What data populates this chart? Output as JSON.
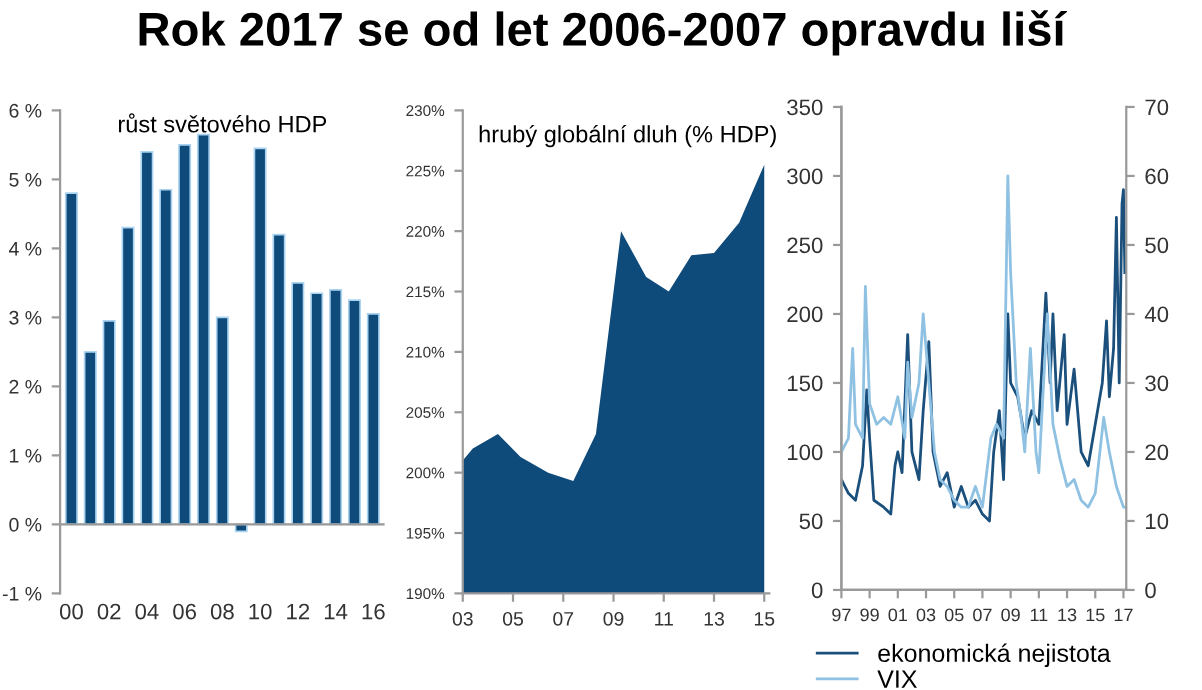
{
  "chart_data": [
    {
      "type": "bar",
      "title": "Rok 2017 se od let 2006-2007 opravdu liší",
      "subtitle": "růst světového HDP",
      "categories": [
        "00",
        null,
        "02",
        null,
        "04",
        null,
        "06",
        null,
        "08",
        null,
        "10",
        null,
        "12",
        null,
        "14",
        null,
        "16"
      ],
      "values": [
        4.8,
        2.5,
        2.95,
        4.3,
        5.4,
        4.85,
        5.5,
        5.65,
        3.0,
        -0.1,
        5.45,
        4.2,
        3.5,
        3.35,
        3.4,
        3.25,
        3.05
      ],
      "color": "#0e4a7a",
      "ylim": [
        -1,
        6
      ],
      "ref_lines": [
        {
          "axis": "y",
          "value": 0,
          "color": "#999999"
        }
      ],
      "yticks": [
        {
          "value": -1,
          "label": "-1 %"
        },
        {
          "value": 0,
          "label": "0 %"
        },
        {
          "value": 1,
          "label": "1 %"
        },
        {
          "value": 2,
          "label": "2 %"
        },
        {
          "value": 3,
          "label": "3 %"
        },
        {
          "value": 4,
          "label": "4 %"
        },
        {
          "value": 5,
          "label": "5 %"
        },
        {
          "value": 6,
          "label": "6 %"
        }
      ],
      "grid": false
    },
    {
      "type": "area",
      "title": "hrubý globální dluh (% HDP)",
      "x": [
        2003,
        2003.4,
        2004.4,
        2005.3,
        2006.4,
        2007.4,
        2008.3,
        2009.3,
        2010.3,
        2011.2,
        2012.1,
        2013,
        2014,
        2015
      ],
      "values": [
        201,
        202,
        203.2,
        201.3,
        200,
        199.3,
        203.2,
        220,
        216.2,
        215,
        218,
        218.2,
        220.7,
        225.5
      ],
      "color": "#0e4a7a",
      "xlim": [
        2003,
        2015.2
      ],
      "xticks": [
        {
          "value": 2003,
          "label": "03"
        },
        {
          "value": 2005,
          "label": "05"
        },
        {
          "value": 2007,
          "label": "07"
        },
        {
          "value": 2009,
          "label": "09"
        },
        {
          "value": 2011,
          "label": "11"
        },
        {
          "value": 2013,
          "label": "13"
        },
        {
          "value": 2015,
          "label": "15"
        }
      ],
      "ylim": [
        190,
        230
      ],
      "yticks": [
        {
          "value": 190,
          "label": "190%"
        },
        {
          "value": 195,
          "label": "195%"
        },
        {
          "value": 200,
          "label": "200%"
        },
        {
          "value": 205,
          "label": "205%"
        },
        {
          "value": 210,
          "label": "210%"
        },
        {
          "value": 215,
          "label": "215%"
        },
        {
          "value": 220,
          "label": "220%"
        },
        {
          "value": 225,
          "label": "225%"
        },
        {
          "value": 230,
          "label": "230%"
        }
      ],
      "grid": false
    },
    {
      "type": "line",
      "xlim": [
        1997,
        2017.2
      ],
      "xticks": [
        {
          "value": 1997,
          "label": "97"
        },
        {
          "value": 1999,
          "label": "99"
        },
        {
          "value": 2001,
          "label": "01"
        },
        {
          "value": 2003,
          "label": "03"
        },
        {
          "value": 2005,
          "label": "05"
        },
        {
          "value": 2007,
          "label": "07"
        },
        {
          "value": 2009,
          "label": "09"
        },
        {
          "value": 2011,
          "label": "11"
        },
        {
          "value": 2013,
          "label": "13"
        },
        {
          "value": 2015,
          "label": "15"
        },
        {
          "value": 2017,
          "label": "17"
        }
      ],
      "ylim": [
        0,
        350
      ],
      "yticks": [
        0,
        50,
        100,
        150,
        200,
        250,
        300,
        350
      ],
      "y2lim": [
        0,
        70
      ],
      "y2ticks": [
        0,
        10,
        20,
        30,
        40,
        50,
        60,
        70
      ],
      "grid": false,
      "legend": "bottom",
      "line_style": "solid",
      "marker": "none",
      "series": [
        {
          "name": "ekonomická nejistota",
          "color": "#1b4f7c",
          "x": [
            1997,
            1997.5,
            1998,
            1998.5,
            1998.8,
            1999,
            1999.3,
            2000,
            2000.5,
            2000.8,
            2001,
            2001.3,
            2001.7,
            2002,
            2002.5,
            2002.8,
            2003.2,
            2003.5,
            2004,
            2004.5,
            2005,
            2005.5,
            2006,
            2006.5,
            2007,
            2007.5,
            2007.8,
            2008.2,
            2008.5,
            2008.8,
            2009,
            2009.5,
            2010,
            2010.5,
            2011,
            2011.5,
            2011.8,
            2012,
            2012.3,
            2012.8,
            2013,
            2013.5,
            2014,
            2014.5,
            2015,
            2015.5,
            2015.8,
            2016,
            2016.3,
            2016.5,
            2016.7,
            2016.9,
            2017,
            2017.1
          ],
          "values": [
            80,
            70,
            65,
            90,
            145,
            110,
            65,
            60,
            55,
            90,
            100,
            85,
            185,
            100,
            80,
            130,
            180,
            100,
            75,
            85,
            60,
            75,
            60,
            65,
            55,
            50,
            100,
            130,
            80,
            200,
            150,
            140,
            110,
            130,
            120,
            215,
            150,
            200,
            130,
            185,
            120,
            160,
            100,
            90,
            120,
            150,
            195,
            140,
            175,
            270,
            150,
            280,
            290,
            230
          ]
        },
        {
          "name": "VIX",
          "color": "#8fc1e3",
          "axis": "y2",
          "x": [
            1997,
            1997.5,
            1997.8,
            1998,
            1998.5,
            1998.7,
            1999,
            1999.5,
            2000,
            2000.5,
            2001,
            2001.5,
            2001.7,
            2002,
            2002.5,
            2002.8,
            2003.2,
            2003.6,
            2004,
            2004.5,
            2005,
            2005.5,
            2006,
            2006.5,
            2007,
            2007.6,
            2008,
            2008.5,
            2008.8,
            2009,
            2009.4,
            2009.8,
            2010,
            2010.4,
            2010.8,
            2011,
            2011.6,
            2012,
            2012.5,
            2013,
            2013.5,
            2014,
            2014.5,
            2015,
            2015.6,
            2016,
            2016.5,
            2017,
            2017.1
          ],
          "values": [
            20,
            22,
            35,
            24,
            22,
            44,
            27,
            24,
            25,
            24,
            28,
            22,
            33,
            25,
            30,
            40,
            30,
            20,
            16,
            15,
            13,
            12,
            12,
            15,
            12,
            22,
            24,
            22,
            60,
            46,
            30,
            24,
            20,
            35,
            20,
            17,
            40,
            24,
            19,
            15,
            16,
            13,
            12,
            14,
            25,
            20,
            15,
            12,
            12
          ]
        }
      ]
    }
  ]
}
